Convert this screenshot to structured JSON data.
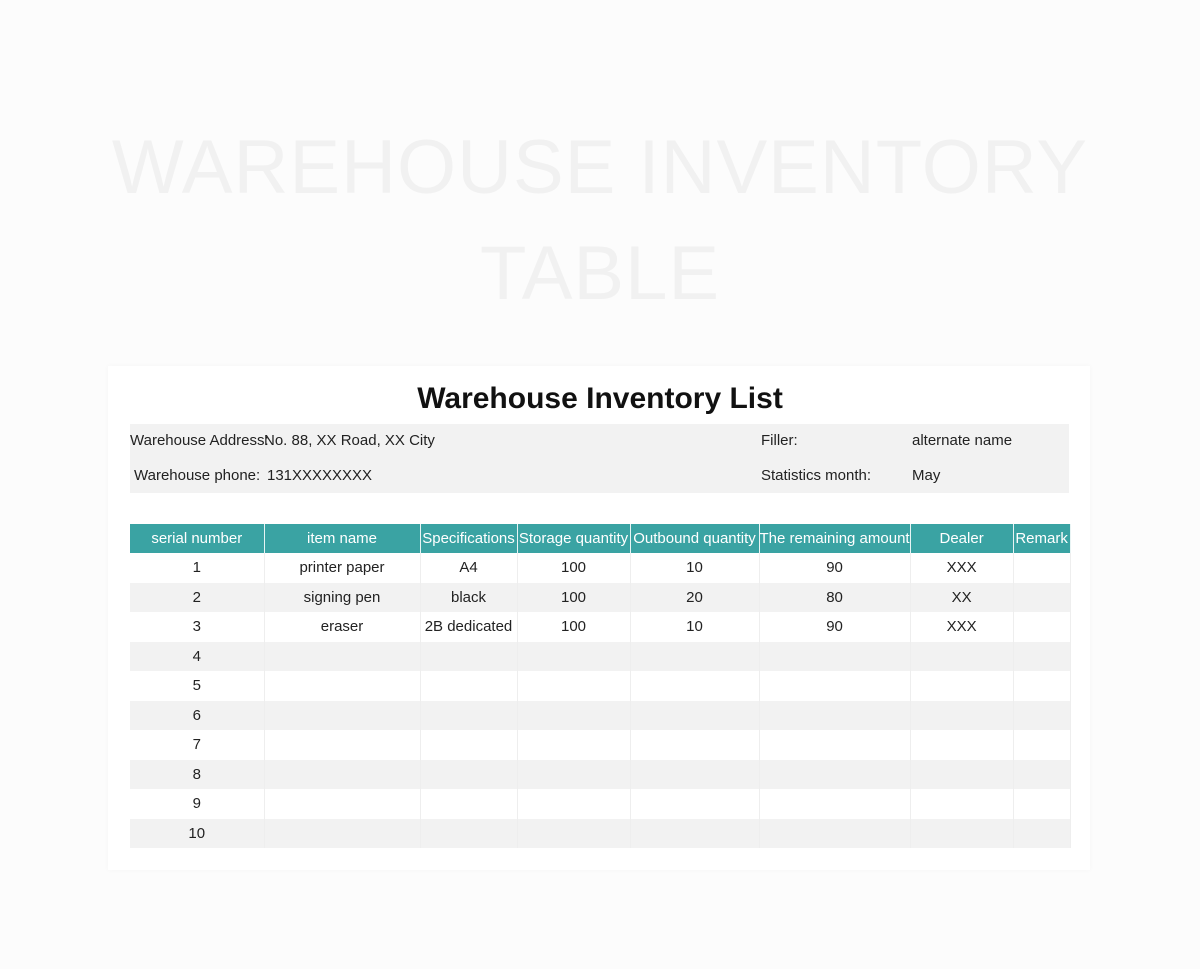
{
  "watermark": {
    "line1": "WAREHOUSE INVENTORY",
    "line2": "TABLE"
  },
  "title": "Warehouse Inventory List",
  "info": {
    "address_label": "Warehouse Address:",
    "address_value": "No. 88, XX Road, XX City",
    "phone_label": "Warehouse phone:",
    "phone_value": "131XXXXXXXX",
    "filler_label": "Filler:",
    "filler_value": "alternate name",
    "month_label": "Statistics month:",
    "month_value": "May"
  },
  "colors": {
    "header": "#3aa3a3",
    "stripe": "#f2f2f2"
  },
  "table": {
    "headers": [
      "serial number",
      "item name",
      "Specifications",
      "Storage quantity",
      "Outbound quantity",
      "The remaining amount",
      "Dealer",
      "Remark"
    ],
    "rows": [
      [
        "1",
        "printer paper",
        "A4",
        "100",
        "10",
        "90",
        "XXX",
        ""
      ],
      [
        "2",
        "signing pen",
        "black",
        "100",
        "20",
        "80",
        "XX",
        ""
      ],
      [
        "3",
        "eraser",
        "2B dedicated",
        "100",
        "10",
        "90",
        "XXX",
        ""
      ],
      [
        "4",
        "",
        "",
        "",
        "",
        "",
        "",
        ""
      ],
      [
        "5",
        "",
        "",
        "",
        "",
        "",
        "",
        ""
      ],
      [
        "6",
        "",
        "",
        "",
        "",
        "",
        "",
        ""
      ],
      [
        "7",
        "",
        "",
        "",
        "",
        "",
        "",
        ""
      ],
      [
        "8",
        "",
        "",
        "",
        "",
        "",
        "",
        ""
      ],
      [
        "9",
        "",
        "",
        "",
        "",
        "",
        "",
        ""
      ],
      [
        "10",
        "",
        "",
        "",
        "",
        "",
        "",
        ""
      ]
    ]
  }
}
